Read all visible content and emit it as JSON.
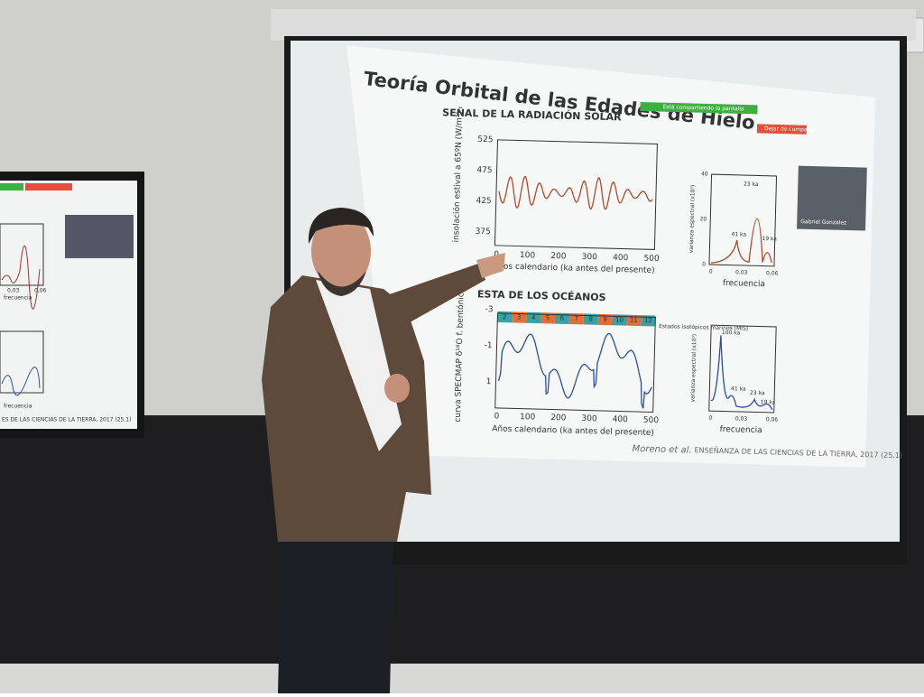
{
  "slide": {
    "title": "Teoría Orbital de las Edades de Hielo",
    "section1": "SEÑAL DE LA RADIACIÓN SOLAR",
    "section2": "ESTA DE LOS OCÉANOS",
    "chart1": {
      "ylabel": "insolación estival a 65ºN (W/m²)",
      "yticks": [
        "525",
        "475",
        "425",
        "375"
      ],
      "xticks": [
        "0",
        "100",
        "200",
        "300",
        "400",
        "500"
      ],
      "xlabel": "Años calendario (ka antes del presente)"
    },
    "spectrum1": {
      "ylabel": "varianza espectral (x10³)",
      "yticks": [
        "40",
        "20",
        "0"
      ],
      "xticks": [
        "0",
        "0,03",
        "0,06"
      ],
      "xlabel": "frecuencia",
      "peaks": [
        "23 ka",
        "41 ka",
        "19 ka"
      ]
    },
    "chart2": {
      "ylabel": "curva SPECMAP δ¹⁸O f. bentónicos",
      "yticks": [
        "-3",
        "-1",
        "1"
      ],
      "xticks": [
        "0",
        "100",
        "200",
        "300",
        "400",
        "500"
      ],
      "xlabel": "Años calendario (ka antes del presente)",
      "stages": [
        "2",
        "3",
        "4",
        "5",
        "6",
        "7",
        "8",
        "9",
        "10",
        "11",
        "12"
      ],
      "stage_label": "Estados isotópicos marinos (MIS)"
    },
    "spectrum2": {
      "ylabel": "varianza espectral (x10³)",
      "xticks": [
        "0",
        "0,03",
        "0,06"
      ],
      "xlabel": "frecuencia",
      "peaks": [
        "100 ka",
        "41 ka",
        "23 ka",
        "19 ka"
      ]
    },
    "credit": "Moreno et al.",
    "source": "ENSEÑANZA DE LAS CIENCIAS DE LA TIERRA, 2017 (25.1)"
  },
  "meeting_bar": {
    "sharing": "Está compartiendo la pantalla",
    "stop": "Dejar de compartir",
    "participant": "Gabriel Gonzalez"
  },
  "left_monitor": {
    "xticks": [
      "0,03",
      "0,06"
    ],
    "xlabel": "frecuencia",
    "source": "ES DE LAS CIENCIAS DE LA TIERRA, 2017 (25.1)"
  }
}
